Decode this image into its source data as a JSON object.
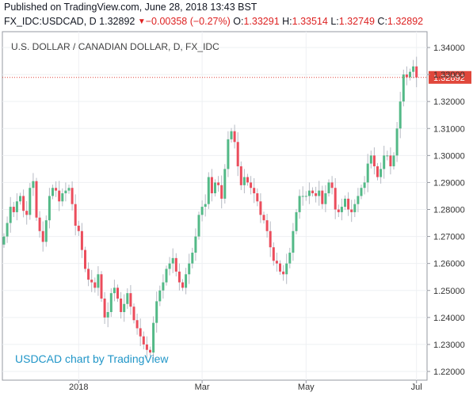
{
  "header": {
    "published": "Published on TradingView.com, June 28, 2018 13:43 BST",
    "symbol": "FX_IDC:USDCAD, D",
    "last": "1.32892",
    "change": "−0.00358 (−0.27%)",
    "open_label": "O:",
    "open": "1.33291",
    "high_label": "H:",
    "high": "1.33514",
    "low_label": "L:",
    "low": "1.32749",
    "close_label": "C:",
    "close": "1.32892"
  },
  "chart_title": "U.S. DOLLAR / CANADIAN DOLLAR, D, FX_IDC",
  "watermark": "USDCAD chart by TradingView",
  "price_label": "1.32892",
  "colors": {
    "up": "#53b987",
    "down": "#eb4d5c",
    "price_line": "#e0473b",
    "accent": "#2196c8"
  },
  "chart_data": {
    "type": "candlestick",
    "title": "U.S. DOLLAR / CANADIAN DOLLAR, D, FX_IDC",
    "xlabel": "",
    "ylabel": "",
    "ylim": [
      1.218,
      1.343
    ],
    "y_ticks": [
      "1.34000",
      "1.33000",
      "1.32000",
      "1.31000",
      "1.30000",
      "1.29000",
      "1.28000",
      "1.27000",
      "1.26000",
      "1.25000",
      "1.24000",
      "1.23000",
      "1.22000"
    ],
    "x_tick_labels": [
      {
        "index": 23,
        "label": "2018"
      },
      {
        "index": 61,
        "label": "Mar"
      },
      {
        "index": 93,
        "label": "May"
      },
      {
        "index": 127,
        "label": "Jul"
      }
    ],
    "last_price": 1.32892,
    "closes": [
      1.27,
      1.275,
      1.281,
      1.279,
      1.283,
      1.285,
      1.2795,
      1.278,
      1.288,
      1.2905,
      1.277,
      1.272,
      1.268,
      1.276,
      1.285,
      1.288,
      1.287,
      1.283,
      1.286,
      1.287,
      1.288,
      1.282,
      1.274,
      1.272,
      1.265,
      1.258,
      1.254,
      1.253,
      1.251,
      1.256,
      1.247,
      1.24,
      1.242,
      1.249,
      1.251,
      1.247,
      1.242,
      1.245,
      1.249,
      1.244,
      1.239,
      1.236,
      1.233,
      1.23,
      1.228,
      1.227,
      1.238,
      1.246,
      1.25,
      1.253,
      1.258,
      1.26,
      1.262,
      1.257,
      1.253,
      1.251,
      1.256,
      1.26,
      1.264,
      1.27,
      1.278,
      1.281,
      1.282,
      1.292,
      1.286,
      1.29,
      1.289,
      1.284,
      1.295,
      1.306,
      1.309,
      1.305,
      1.296,
      1.289,
      1.292,
      1.29,
      1.288,
      1.286,
      1.283,
      1.278,
      1.276,
      1.272,
      1.266,
      1.261,
      1.26,
      1.257,
      1.256,
      1.26,
      1.264,
      1.272,
      1.279,
      1.285,
      1.285,
      1.285,
      1.287,
      1.286,
      1.285,
      1.287,
      1.282,
      1.286,
      1.29,
      1.288,
      1.28,
      1.279,
      1.281,
      1.284,
      1.28,
      1.279,
      1.282,
      1.285,
      1.288,
      1.29,
      1.297,
      1.3,
      1.296,
      1.292,
      1.295,
      1.3,
      1.3,
      1.296,
      1.3,
      1.31,
      1.32,
      1.33,
      1.329,
      1.331,
      1.333,
      1.3289
    ]
  }
}
